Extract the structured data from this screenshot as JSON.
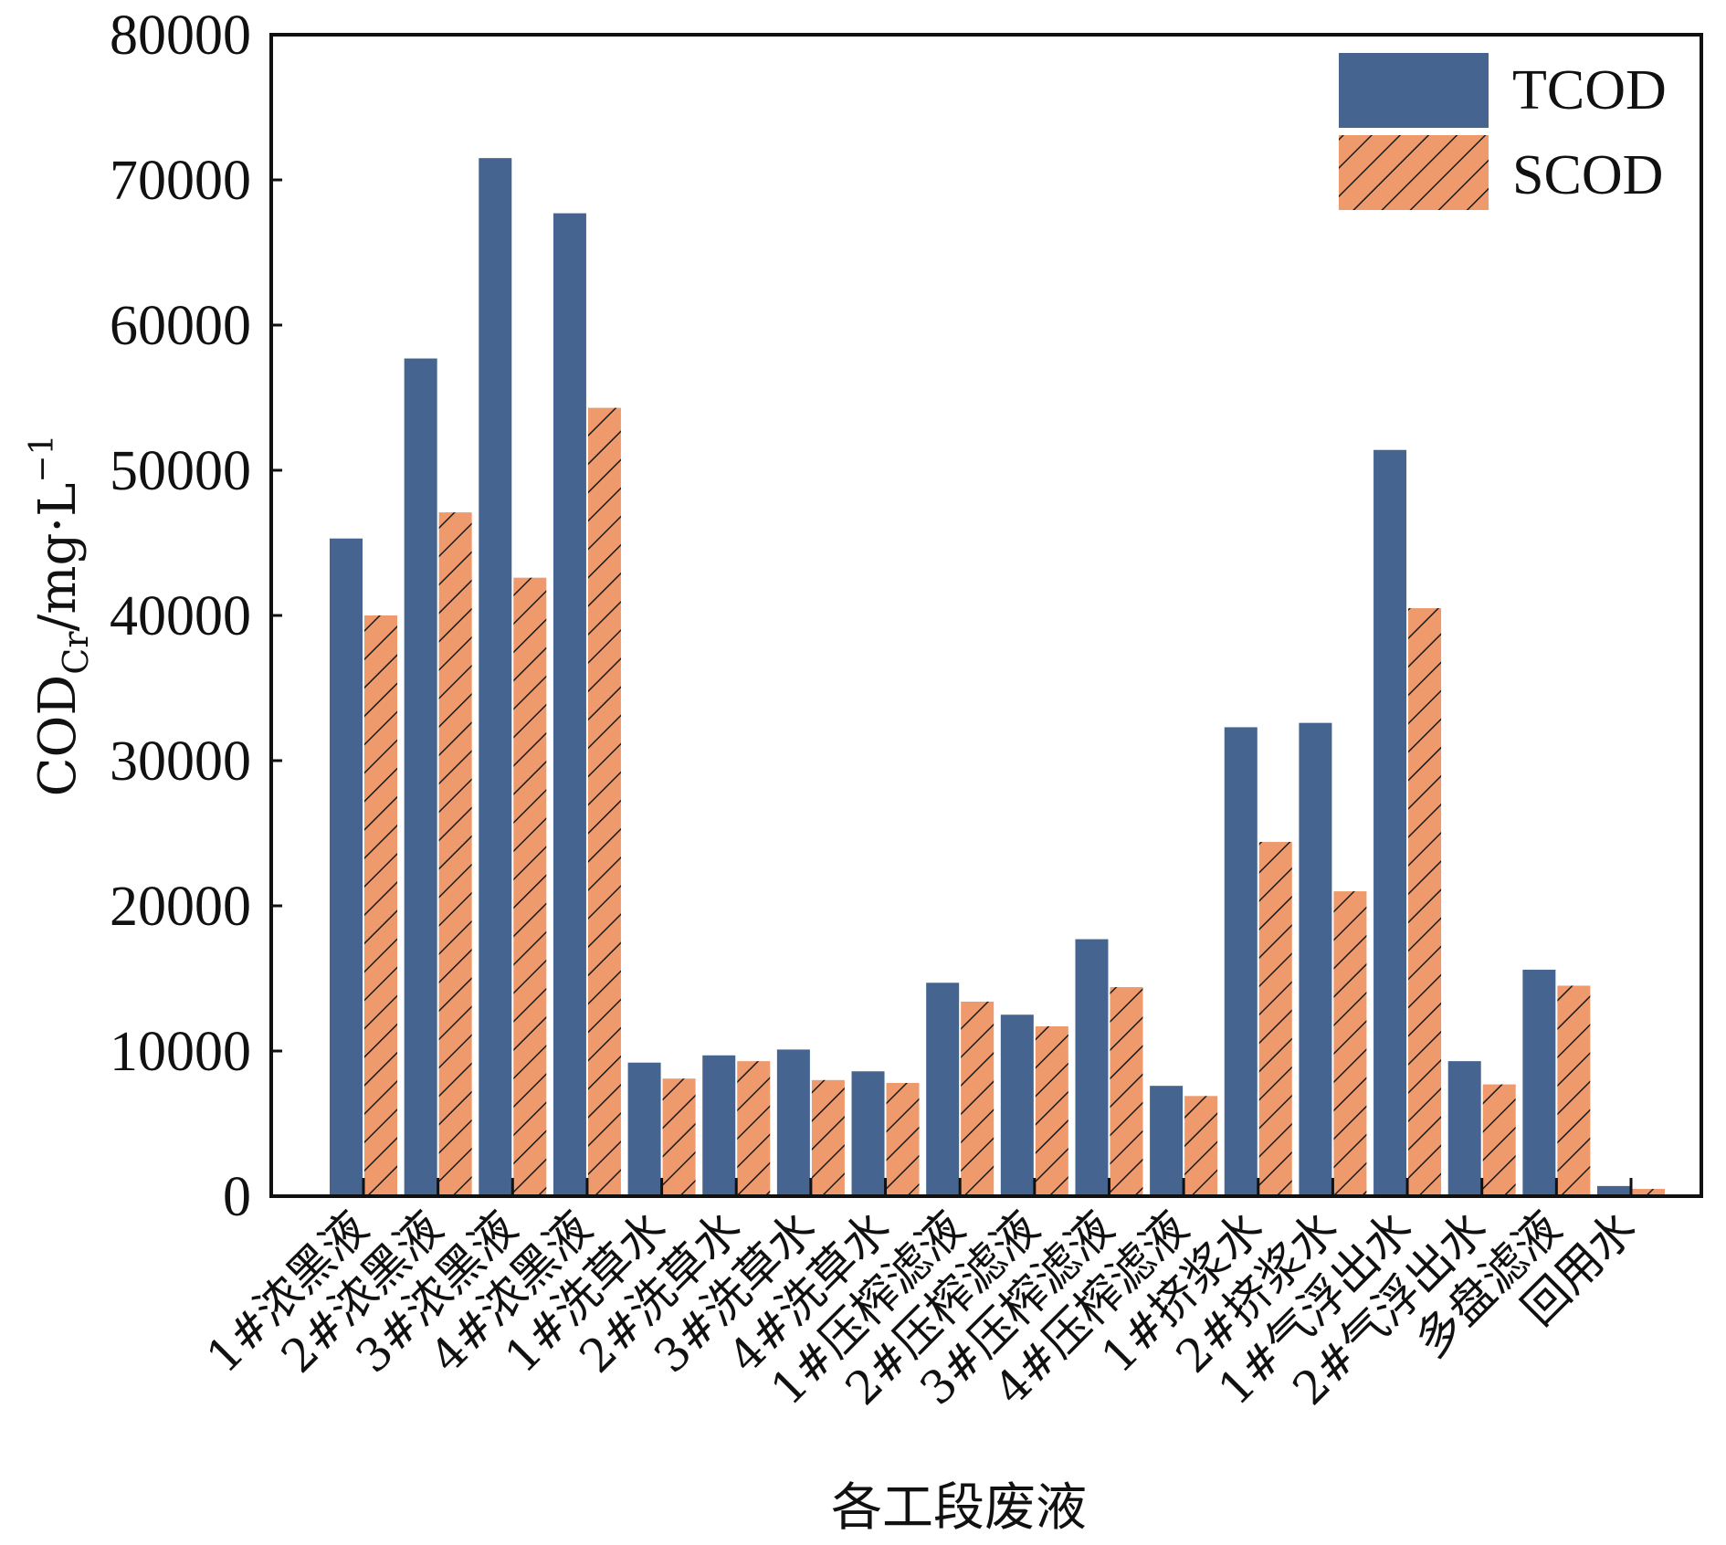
{
  "chart_data": {
    "type": "bar",
    "title": "",
    "xlabel": "各工段废液",
    "ylabel": "COD",
    "ylabel_sub": "Cr",
    "ylabel_unit": "/mg·L",
    "ylabel_sup": "−1",
    "ylim": [
      0,
      80000
    ],
    "yticks": [
      "0",
      "10000",
      "20000",
      "30000",
      "40000",
      "50000",
      "60000",
      "70000",
      "80000"
    ],
    "grid": false,
    "legend_position": "top-right",
    "categories": [
      "1#浓黑液",
      "2#浓黑液",
      "3#浓黑液",
      "4#浓黑液",
      "1#洗草水",
      "2#洗草水",
      "3#洗草水",
      "4#洗草水",
      "1#压榨滤液",
      "2#压榨滤液",
      "3#压榨滤液",
      "4#压榨滤液",
      "1#挤浆水",
      "2#挤浆水",
      "1#气浮出水",
      "2#气浮出水",
      "多盘滤液",
      "回用水"
    ],
    "series": [
      {
        "name": "TCOD",
        "color": "#456590",
        "pattern": "solid",
        "values": [
          45300,
          57700,
          71500,
          67700,
          9200,
          9700,
          10100,
          8600,
          14700,
          12500,
          17700,
          7600,
          32300,
          32600,
          51400,
          9300,
          15600,
          700
        ]
      },
      {
        "name": "SCOD",
        "color": "#EE9A6C",
        "pattern": "hatched",
        "values": [
          40000,
          47100,
          42600,
          54300,
          8100,
          9300,
          8000,
          7800,
          13400,
          11700,
          14400,
          6900,
          24400,
          21000,
          40500,
          7700,
          14500,
          500
        ]
      }
    ]
  }
}
